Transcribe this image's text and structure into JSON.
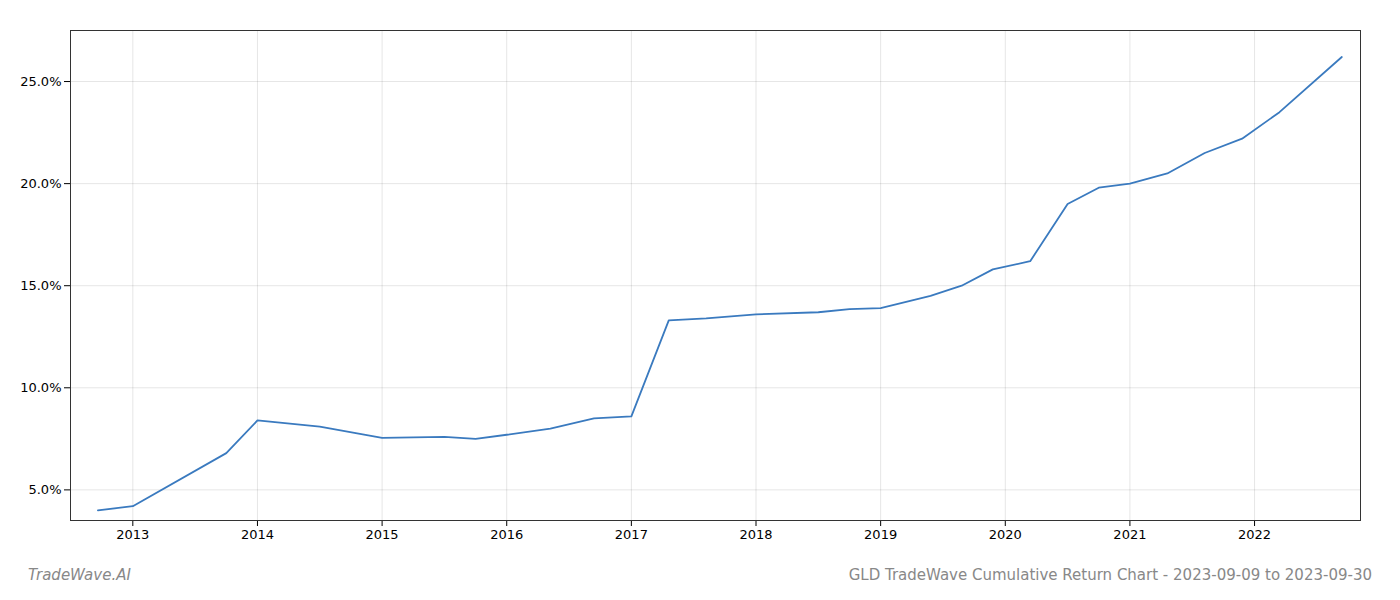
{
  "chart_data": {
    "type": "line",
    "x": [
      2012.72,
      2013.0,
      2013.75,
      2014.0,
      2014.5,
      2015.0,
      2015.5,
      2015.75,
      2016.0,
      2016.35,
      2016.7,
      2017.0,
      2017.3,
      2017.6,
      2018.0,
      2018.5,
      2018.75,
      2019.0,
      2019.4,
      2019.65,
      2019.9,
      2020.2,
      2020.5,
      2020.75,
      2021.0,
      2021.3,
      2021.6,
      2021.9,
      2022.2,
      2022.7
    ],
    "values": [
      4.0,
      4.2,
      6.8,
      8.4,
      8.1,
      7.55,
      7.6,
      7.5,
      7.7,
      8.0,
      8.5,
      8.6,
      13.3,
      13.4,
      13.6,
      13.7,
      13.85,
      13.9,
      14.5,
      15.0,
      15.8,
      16.2,
      19.0,
      19.8,
      20.0,
      20.5,
      21.5,
      22.2,
      23.5,
      26.2
    ],
    "color": "#3a7abf",
    "xlim": [
      2012.5,
      2022.85
    ],
    "ylim": [
      3.5,
      27.5
    ],
    "xticks": [
      2013,
      2014,
      2015,
      2016,
      2017,
      2018,
      2019,
      2020,
      2021,
      2022
    ],
    "yticks": [
      {
        "value": 5.0,
        "label": "5.0%"
      },
      {
        "value": 10.0,
        "label": "10.0%"
      },
      {
        "value": 15.0,
        "label": "15.0%"
      },
      {
        "value": 20.0,
        "label": "20.0%"
      },
      {
        "value": 25.0,
        "label": "25.0%"
      }
    ],
    "grid": true,
    "annotations": [
      "TradeWave.AI",
      "GLD TradeWave Cumulative Return Chart - 2023-09-09 to 2023-09-30"
    ]
  }
}
